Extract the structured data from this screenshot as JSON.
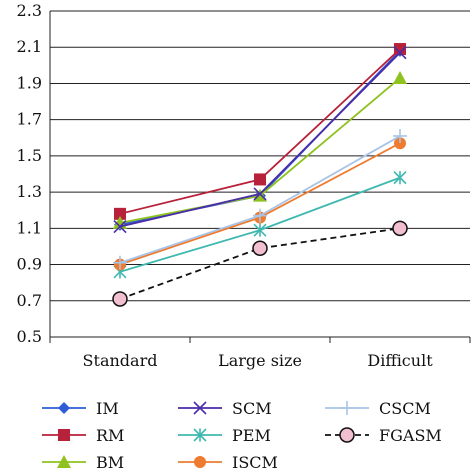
{
  "chart_data": {
    "type": "line",
    "title": "",
    "xlabel": "",
    "ylabel": "",
    "categories": [
      "Standard",
      "Large size",
      "Difficult"
    ],
    "ylim": [
      0.5,
      2.3
    ],
    "yticks": [
      "0.5",
      "0.7",
      "0.9",
      "1.1",
      "1.3",
      "1.5",
      "1.7",
      "1.9",
      "2.1",
      "2.3"
    ],
    "grid": "horizontal",
    "legend_position": "bottom",
    "series": [
      {
        "name": "IM",
        "values": [
          1.12,
          1.28,
          2.08
        ],
        "color": "#2e5bd6",
        "marker": "diamond",
        "dash": false
      },
      {
        "name": "RM",
        "values": [
          1.18,
          1.37,
          2.09
        ],
        "color": "#b8213a",
        "marker": "square",
        "dash": false
      },
      {
        "name": "BM",
        "values": [
          1.13,
          1.28,
          1.93
        ],
        "color": "#8dc21f",
        "marker": "triangle",
        "dash": false
      },
      {
        "name": "SCM",
        "values": [
          1.11,
          1.29,
          2.07
        ],
        "color": "#4a2ca8",
        "marker": "x",
        "dash": false
      },
      {
        "name": "PEM",
        "values": [
          0.86,
          1.09,
          1.38
        ],
        "color": "#3fb8b0",
        "marker": "star",
        "dash": false
      },
      {
        "name": "ISCM",
        "values": [
          0.9,
          1.16,
          1.57
        ],
        "color": "#ee7b30",
        "marker": "circle",
        "dash": false
      },
      {
        "name": "CSCM",
        "values": [
          0.91,
          1.17,
          1.61
        ],
        "color": "#a8c4e6",
        "marker": "plus",
        "dash": false
      },
      {
        "name": "FGASM",
        "values": [
          0.71,
          0.99,
          1.1
        ],
        "color": "#111111",
        "marker": "circle-pink",
        "dash": true
      }
    ]
  }
}
